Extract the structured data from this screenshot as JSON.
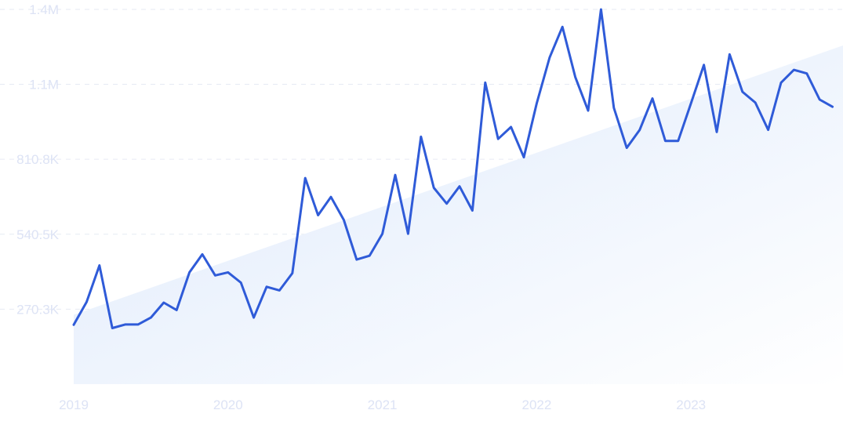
{
  "chart_data": {
    "type": "line",
    "title": "",
    "xlabel": "",
    "ylabel": "",
    "grid": true,
    "legend": "none",
    "colors": {
      "line": "#2f5bd8",
      "trend_fill_start": "#dde9fb",
      "trend_fill_end": "#ffffff",
      "tick_text": "#dde3f5",
      "grid": "#e6eaf3"
    },
    "x_start": "2019-01",
    "x_step": "month",
    "x_ticks": [
      {
        "label": "2019",
        "month_index": 0
      },
      {
        "label": "2020",
        "month_index": 12
      },
      {
        "label": "2021",
        "month_index": 24
      },
      {
        "label": "2022",
        "month_index": 36
      },
      {
        "label": "2023",
        "month_index": 48
      }
    ],
    "y_ticks": [
      {
        "label": "270.3K",
        "value": 270300
      },
      {
        "label": "540.5K",
        "value": 540500
      },
      {
        "label": "810.8K",
        "value": 810800
      },
      {
        "label": "1.1M",
        "value": 1081000
      },
      {
        "label": "1.4M",
        "value": 1351000
      }
    ],
    "ylim": [
      0,
      1351000
    ],
    "series": [
      {
        "values": [
          214000,
          296000,
          428000,
          202000,
          215000,
          215000,
          240000,
          294000,
          267000,
          403000,
          468000,
          392000,
          403000,
          366000,
          240000,
          351000,
          338000,
          400000,
          743000,
          609000,
          675000,
          592000,
          449000,
          463000,
          542000,
          754000,
          542000,
          892000,
          708000,
          651000,
          713000,
          626000,
          1087000,
          884000,
          927000,
          818000,
          1012000,
          1177000,
          1288000,
          1107000,
          986000,
          1351000,
          996000,
          852000,
          916000,
          1030000,
          877000,
          877000,
          1013000,
          1151000,
          909000,
          1189000,
          1054000,
          1015000,
          917000,
          1087000,
          1133000,
          1120000,
          1026000,
          1000000
        ]
      }
    ],
    "trend": {
      "start_value": 250000,
      "end_value": 1221000
    }
  }
}
